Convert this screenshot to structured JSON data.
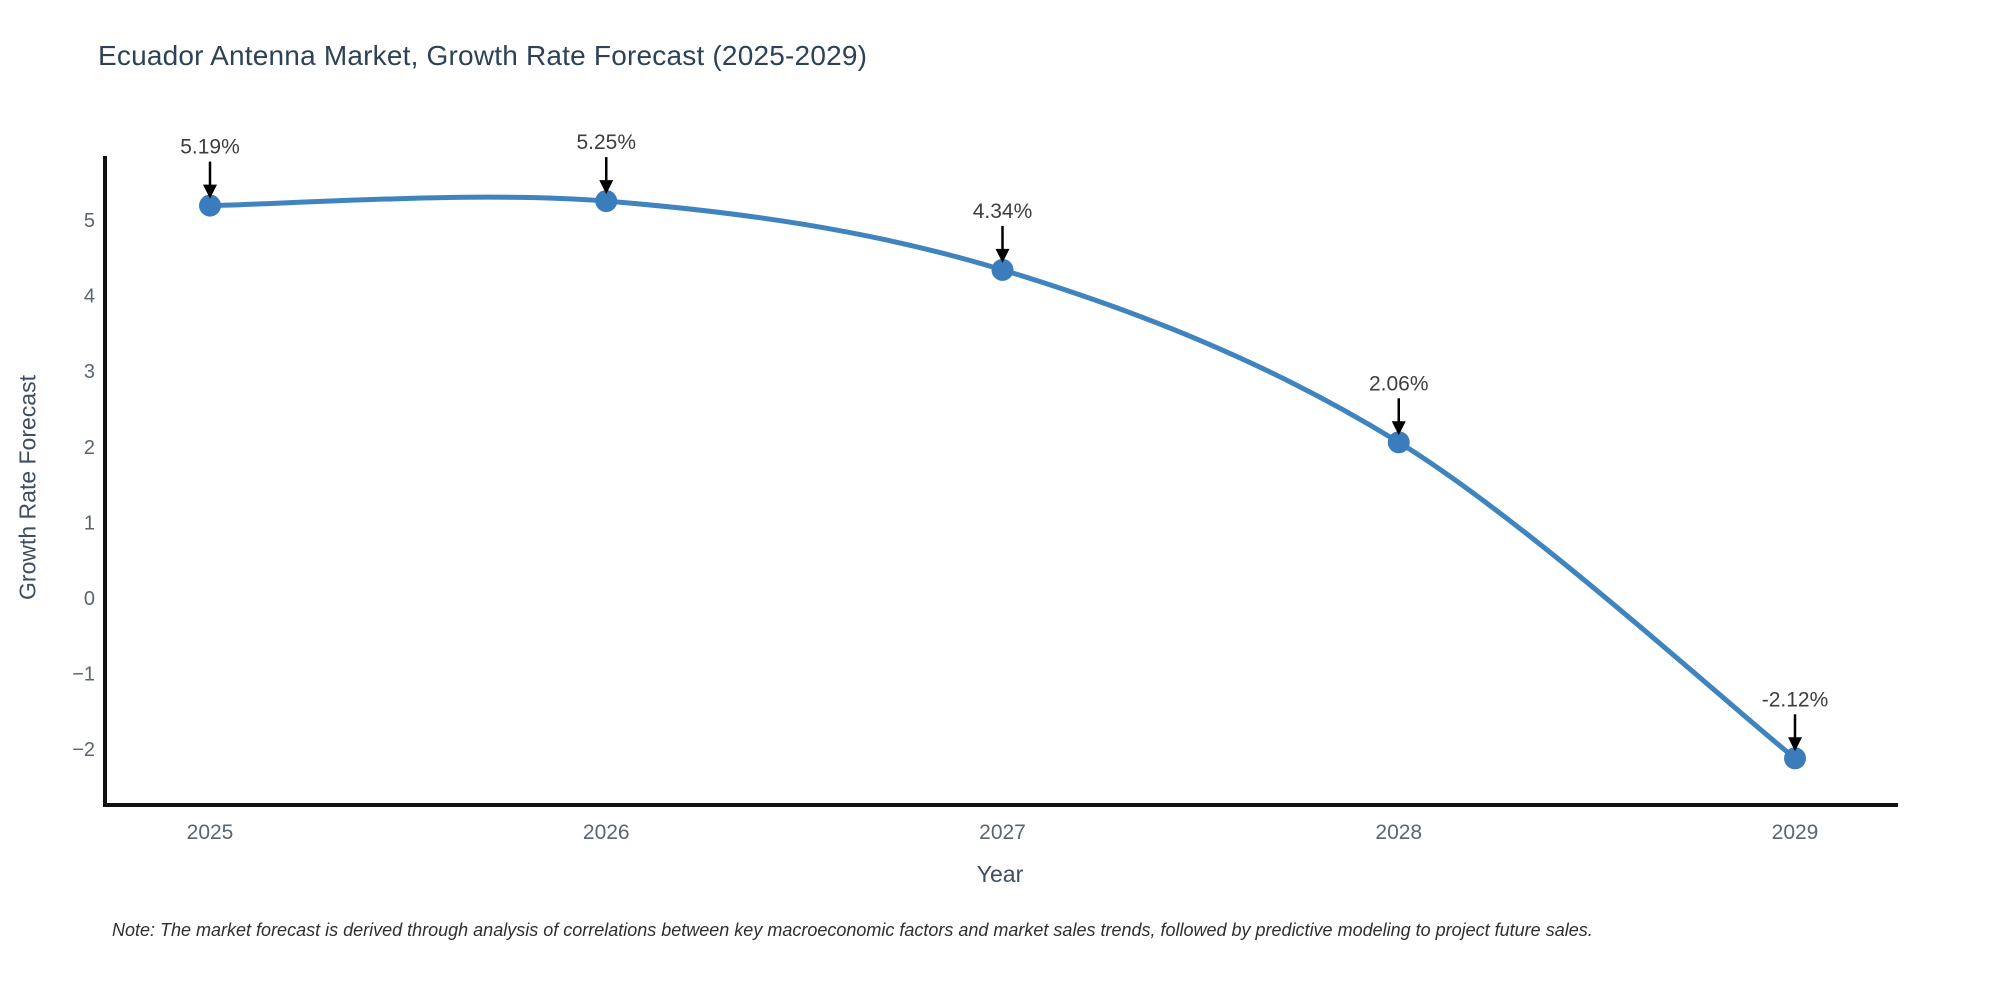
{
  "chart_data": {
    "type": "line",
    "title": "Ecuador Antenna Market, Growth Rate Forecast (2025-2029)",
    "xlabel": "Year",
    "ylabel": "Growth Rate Forecast",
    "categories": [
      "2025",
      "2026",
      "2027",
      "2028",
      "2029"
    ],
    "series": [
      {
        "name": "Growth Rate Forecast",
        "values": [
          5.19,
          5.25,
          4.34,
          2.06,
          -2.12
        ]
      }
    ],
    "point_labels": [
      "5.19%",
      "5.25%",
      "4.34%",
      "2.06%",
      "-2.12%"
    ],
    "y_ticks": [
      5,
      4,
      3,
      2,
      1,
      0,
      -1,
      -2
    ],
    "y_tick_labels": [
      "5",
      "4",
      "3",
      "2",
      "1",
      "0",
      "−1",
      "−2"
    ],
    "ylim": [
      -2.74,
      5.86
    ],
    "grid": false,
    "legend": "none",
    "line_shape": "spline",
    "annotation_arrows": true,
    "colors": {
      "line": "#4084bf",
      "marker": "#3b7cbc",
      "axis": "#111111",
      "tick_label": "#5b6470",
      "title": "#2e4257",
      "axis_label": "#3f4d61",
      "annotation": "#3e3e3e",
      "note": "#2f2f2f",
      "background": "#ffffff"
    }
  },
  "note": {
    "text": "Note: The market forecast is derived through analysis of correlations between key macroeconomic factors and market sales trends, followed by predictive modeling to project future sales."
  }
}
